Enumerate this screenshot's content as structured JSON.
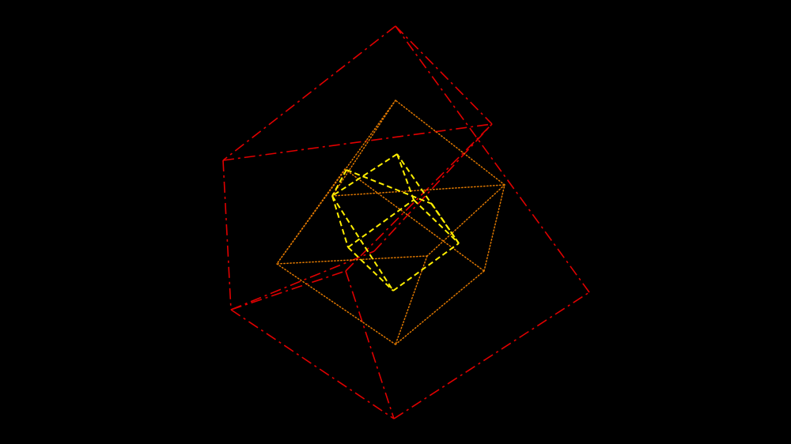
{
  "background_color": "#000000",
  "cubes": [
    {
      "name": "outer-cube",
      "color": "#e00000",
      "line_style": "dash-dot",
      "edges": 12
    },
    {
      "name": "middle-cube",
      "color": "#e07800",
      "line_style": "dotted",
      "edges": 12
    },
    {
      "name": "inner-cube",
      "color": "#ffee00",
      "line_style": "dashed",
      "edges": 12
    }
  ]
}
